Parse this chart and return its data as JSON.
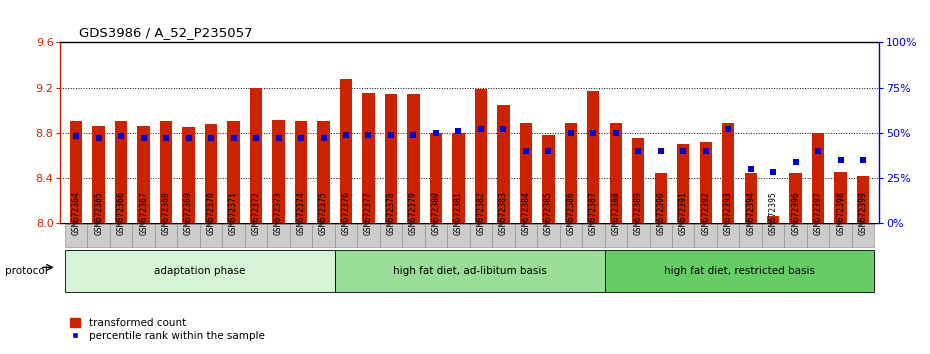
{
  "title": "GDS3986 / A_52_P235057",
  "samples": [
    "GSM672364",
    "GSM672365",
    "GSM672366",
    "GSM672367",
    "GSM672368",
    "GSM672369",
    "GSM672370",
    "GSM672371",
    "GSM672372",
    "GSM672373",
    "GSM672374",
    "GSM672375",
    "GSM672376",
    "GSM672377",
    "GSM672378",
    "GSM672379",
    "GSM672380",
    "GSM672381",
    "GSM672382",
    "GSM672383",
    "GSM672384",
    "GSM672385",
    "GSM672386",
    "GSM672387",
    "GSM672388",
    "GSM672389",
    "GSM672390",
    "GSM672391",
    "GSM672392",
    "GSM672393",
    "GSM672394",
    "GSM672395",
    "GSM672396",
    "GSM672397",
    "GSM672398",
    "GSM672399"
  ],
  "red_values": [
    8.9,
    8.86,
    8.9,
    8.86,
    8.9,
    8.85,
    8.88,
    8.9,
    9.2,
    8.91,
    8.9,
    8.9,
    9.28,
    9.15,
    9.14,
    9.14,
    8.8,
    8.8,
    9.19,
    9.05,
    8.89,
    8.78,
    8.89,
    9.17,
    8.89,
    8.75,
    8.44,
    8.7,
    8.72,
    8.89,
    8.44,
    8.06,
    8.44,
    8.8,
    8.45,
    8.42
  ],
  "blue_percentiles": [
    48,
    47,
    48,
    47,
    47,
    47,
    47,
    47,
    47,
    47,
    47,
    47,
    49,
    49,
    49,
    49,
    50,
    51,
    52,
    52,
    40,
    40,
    50,
    50,
    50,
    40,
    40,
    40,
    40,
    52,
    30,
    28,
    34,
    40,
    35,
    35
  ],
  "ylim_left": [
    8.0,
    9.6
  ],
  "ylim_right": [
    0,
    100
  ],
  "yticks_left": [
    8.0,
    8.4,
    8.8,
    9.2,
    9.6
  ],
  "yticks_right": [
    0,
    25,
    50,
    75,
    100
  ],
  "yticklabels_right": [
    "0%",
    "25%",
    "50%",
    "75%",
    "100%"
  ],
  "groups": [
    {
      "label": "adaptation phase",
      "start": 0,
      "end": 12,
      "color": "#d6f5d6"
    },
    {
      "label": "high fat diet, ad-libitum basis",
      "start": 12,
      "end": 24,
      "color": "#99dd99"
    },
    {
      "label": "high fat diet, restricted basis",
      "start": 24,
      "end": 36,
      "color": "#66cc66"
    }
  ],
  "bar_color": "#cc2200",
  "blue_color": "#0000cc",
  "bar_width": 0.55,
  "protocol_label": "protocol",
  "legend_red": "transformed count",
  "legend_blue": "percentile rank within the sample",
  "left_axis_color": "#cc2200",
  "right_axis_color": "#0000cc",
  "sample_box_color": "#cccccc",
  "sample_box_edge": "#888888"
}
